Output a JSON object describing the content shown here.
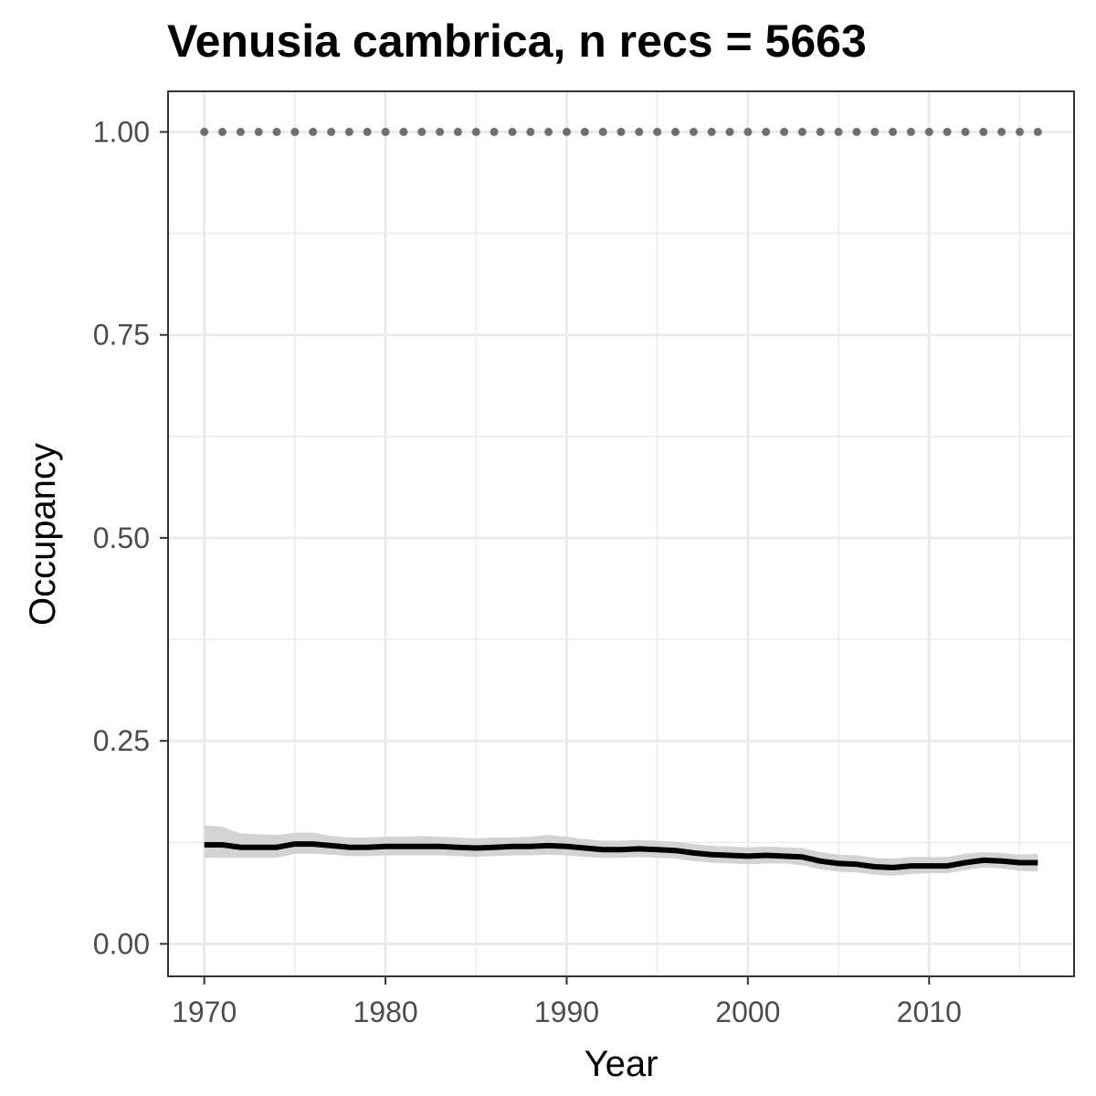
{
  "chart_data": {
    "type": "line",
    "title": "Venusia cambrica, n recs = 5663",
    "xlabel": "Year",
    "ylabel": "Occupancy",
    "xlim": [
      1968,
      2018
    ],
    "ylim": [
      -0.04,
      1.05
    ],
    "x_ticks": [
      1970,
      1980,
      1990,
      2000,
      2010
    ],
    "y_ticks": [
      0.0,
      0.25,
      0.5,
      0.75,
      1.0
    ],
    "x_tick_labels": [
      "1970",
      "1980",
      "1990",
      "2000",
      "2010"
    ],
    "y_tick_labels": [
      "0.00",
      "0.25",
      "0.50",
      "0.75",
      "1.00"
    ],
    "grid": true,
    "legend": "none",
    "x": [
      1970,
      1971,
      1972,
      1973,
      1974,
      1975,
      1976,
      1977,
      1978,
      1979,
      1980,
      1981,
      1982,
      1983,
      1984,
      1985,
      1986,
      1987,
      1988,
      1989,
      1990,
      1991,
      1992,
      1993,
      1994,
      1995,
      1996,
      1997,
      1998,
      1999,
      2000,
      2001,
      2002,
      2003,
      2004,
      2005,
      2006,
      2007,
      2008,
      2009,
      2010,
      2011,
      2012,
      2013,
      2014,
      2015,
      2016
    ],
    "series": [
      {
        "style": "solid",
        "color": "#000000",
        "values": [
          0.122,
          0.122,
          0.119,
          0.119,
          0.119,
          0.123,
          0.123,
          0.121,
          0.119,
          0.119,
          0.12,
          0.12,
          0.12,
          0.12,
          0.119,
          0.118,
          0.119,
          0.12,
          0.12,
          0.121,
          0.12,
          0.118,
          0.116,
          0.116,
          0.117,
          0.116,
          0.115,
          0.112,
          0.11,
          0.109,
          0.108,
          0.109,
          0.108,
          0.107,
          0.102,
          0.099,
          0.098,
          0.095,
          0.094,
          0.096,
          0.096,
          0.096,
          0.1,
          0.103,
          0.102,
          0.1,
          0.1
        ],
        "lower": [
          0.106,
          0.106,
          0.106,
          0.106,
          0.106,
          0.111,
          0.111,
          0.11,
          0.108,
          0.108,
          0.109,
          0.109,
          0.109,
          0.109,
          0.108,
          0.107,
          0.108,
          0.109,
          0.109,
          0.11,
          0.109,
          0.107,
          0.106,
          0.106,
          0.107,
          0.106,
          0.105,
          0.102,
          0.1,
          0.099,
          0.098,
          0.099,
          0.099,
          0.097,
          0.092,
          0.089,
          0.088,
          0.085,
          0.084,
          0.086,
          0.087,
          0.087,
          0.091,
          0.094,
          0.093,
          0.09,
          0.089
        ],
        "upper": [
          0.146,
          0.144,
          0.136,
          0.135,
          0.134,
          0.137,
          0.137,
          0.133,
          0.131,
          0.131,
          0.132,
          0.132,
          0.133,
          0.132,
          0.131,
          0.13,
          0.131,
          0.131,
          0.132,
          0.134,
          0.132,
          0.129,
          0.127,
          0.127,
          0.128,
          0.127,
          0.126,
          0.123,
          0.121,
          0.12,
          0.119,
          0.12,
          0.119,
          0.118,
          0.113,
          0.11,
          0.109,
          0.106,
          0.105,
          0.107,
          0.107,
          0.107,
          0.111,
          0.113,
          0.112,
          0.11,
          0.111
        ]
      },
      {
        "style": "dotted",
        "color": "#6e6e6e",
        "values": [
          1,
          1,
          1,
          1,
          1,
          1,
          1,
          1,
          1,
          1,
          1,
          1,
          1,
          1,
          1,
          1,
          1,
          1,
          1,
          1,
          1,
          1,
          1,
          1,
          1,
          1,
          1,
          1,
          1,
          1,
          1,
          1,
          1,
          1,
          1,
          1,
          1,
          1,
          1,
          1,
          1,
          1,
          1,
          1,
          1,
          1,
          1
        ]
      }
    ],
    "colors": {
      "panel_border": "#333333",
      "grid": "#ebebeb",
      "ribbon": "#d3d3d3",
      "tick_text": "#4d4d4d"
    }
  }
}
